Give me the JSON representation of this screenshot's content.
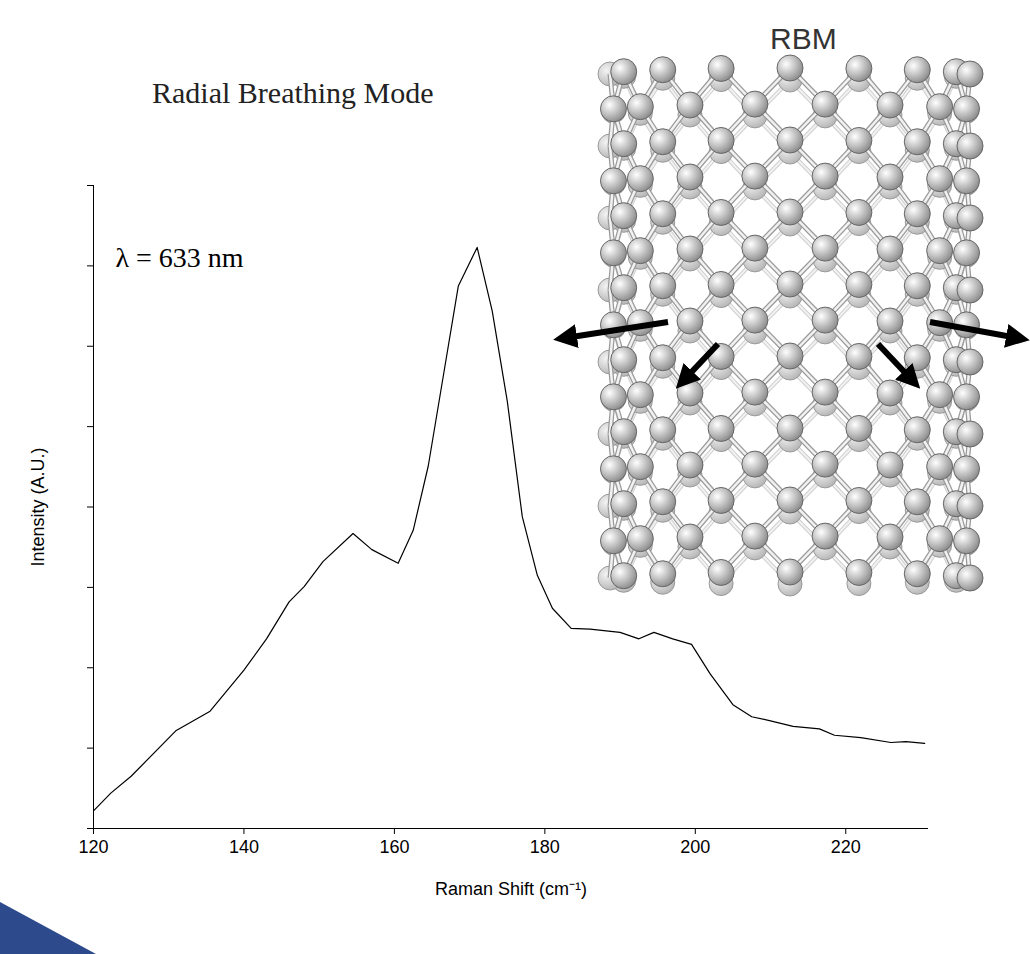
{
  "chart_data": {
    "type": "line",
    "title": "Radial Breathing Mode",
    "annotations": [
      "λ = 633 nm",
      "RBM"
    ],
    "x_label": "Raman Shift (cm⁻¹)",
    "y_label": "Intensity (A.U.)",
    "x": [
      120,
      122.3,
      125,
      131,
      135.5,
      140,
      143,
      146,
      148,
      150.5,
      154.5,
      157,
      160.5,
      162.5,
      164.5,
      166.5,
      168.5,
      171,
      173,
      175,
      177,
      179,
      181,
      183.5,
      186,
      190,
      192.5,
      194.5,
      197,
      199.5,
      202,
      205,
      207.5,
      210,
      213,
      216.5,
      218.5,
      222,
      226,
      228,
      230.5
    ],
    "values": [
      0.22,
      0.44,
      0.65,
      1.22,
      1.46,
      1.97,
      2.36,
      2.82,
      3.01,
      3.32,
      3.67,
      3.47,
      3.3,
      3.71,
      4.51,
      5.63,
      6.75,
      7.23,
      6.44,
      5.32,
      3.88,
      3.15,
      2.74,
      2.49,
      2.48,
      2.44,
      2.36,
      2.44,
      2.36,
      2.29,
      1.92,
      1.54,
      1.39,
      1.34,
      1.27,
      1.24,
      1.16,
      1.13,
      1.07,
      1.08,
      1.06
    ],
    "color": "#000000",
    "xlim": [
      120,
      231
    ],
    "xticks": [
      120,
      140,
      160,
      180,
      200,
      220
    ],
    "ylim": [
      0,
      8
    ],
    "yticks": [
      0,
      1,
      2,
      3,
      4,
      5,
      6,
      7,
      8
    ],
    "tick_labels": "x",
    "grid": false
  }
}
